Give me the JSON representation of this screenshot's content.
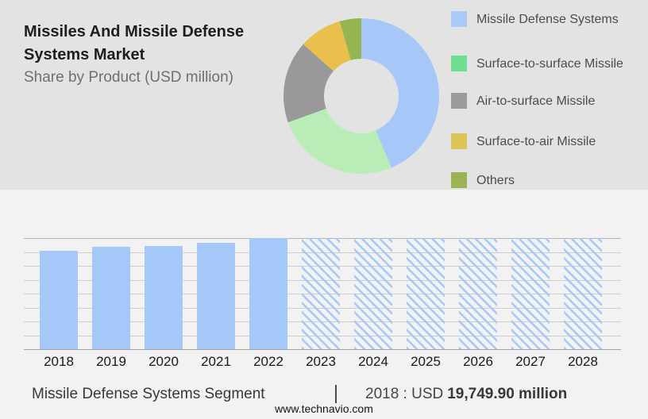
{
  "header": {
    "title": "Missiles And Missile Defense Systems Market",
    "subtitle": "Share by Product (USD million)"
  },
  "legend": {
    "items": [
      {
        "label": "Missile Defense Systems",
        "swatch_color": "#a9c9f7"
      },
      {
        "label": "Surface-to-surface Missile",
        "swatch_color": "#70de92"
      },
      {
        "label": "Air-to-surface Missile",
        "swatch_color": "#9c9c9c"
      },
      {
        "label": "Surface-to-air Missile",
        "swatch_color": "#dcc455"
      },
      {
        "label": "Others",
        "swatch_color": "#9cb354"
      }
    ]
  },
  "chart_data": [
    {
      "type": "pie",
      "subtype": "donut",
      "title": "Share by Product (USD million)",
      "labels": [
        "Missile Defense Systems",
        "Surface-to-surface Missile",
        "Air-to-surface Missile",
        "Surface-to-air Missile",
        "Others"
      ],
      "values_pct_estimated": [
        43.7,
        25.8,
        17.1,
        8.9,
        4.5
      ],
      "colors": [
        "#a6c8f8",
        "#b9edb7",
        "#999999",
        "#eac04d",
        "#95b551"
      ],
      "hole_ratio": 0.48,
      "start_angle_deg": 0,
      "direction": "clockwise",
      "legend_position": "right"
    },
    {
      "type": "bar",
      "categories": [
        "2018",
        "2019",
        "2020",
        "2021",
        "2022",
        "2023",
        "2024",
        "2025",
        "2026",
        "2027",
        "2028"
      ],
      "values_relative": [
        0.886,
        0.922,
        0.925,
        0.957,
        1.0,
        1.0,
        1.0,
        1.0,
        1.0,
        1.0,
        1.0
      ],
      "bar_styles": [
        "solid",
        "solid",
        "solid",
        "solid",
        "solid",
        "hatched",
        "hatched",
        "hatched",
        "hatched",
        "hatched",
        "hatched"
      ],
      "bar_color": "#a6c8f8",
      "known_point": {
        "category": "2018",
        "value_text": "USD 19,749.90 million"
      },
      "grid": "horizontal",
      "xlabel": "",
      "ylabel": ""
    }
  ],
  "footer": {
    "segment_label": "Missile Defense Systems Segment",
    "separator": "|",
    "value_prefix": "2018 : USD",
    "value_bold": "19,749.90 million",
    "website": "www.technavio.com"
  }
}
